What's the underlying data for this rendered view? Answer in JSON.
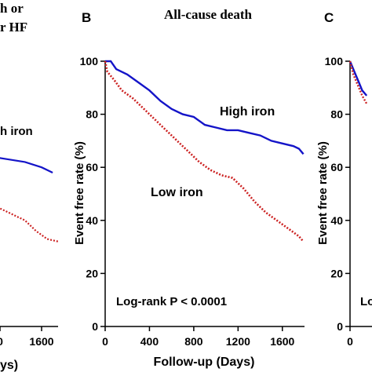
{
  "chart_data": [
    {
      "panel": "left (partial)",
      "type": "line",
      "title_fragments": [
        "h or",
        "r HF"
      ],
      "series_label": "h iron",
      "x_ticks": [
        "0",
        "1600"
      ],
      "xlabel_fragment": "ys)",
      "series": [
        {
          "name": "High iron",
          "color": "#1414c8",
          "points": [
            [
              1150,
              64
            ],
            [
              1300,
              63
            ],
            [
              1450,
              62
            ],
            [
              1600,
              60
            ],
            [
              1700,
              58
            ]
          ]
        },
        {
          "name": "Low iron",
          "color": "#cc2222",
          "points": [
            [
              1150,
              46
            ],
            [
              1300,
              43
            ],
            [
              1450,
              40
            ],
            [
              1550,
              36
            ],
            [
              1650,
              33
            ],
            [
              1750,
              32
            ]
          ]
        }
      ]
    },
    {
      "panel": "B",
      "type": "line",
      "panel_label": "B",
      "title": "All-cause death",
      "xlabel": "Follow-up (Days)",
      "ylabel": "Event free rate (%)",
      "xlim": [
        0,
        1800
      ],
      "ylim": [
        0,
        100
      ],
      "x_ticks": [
        0,
        400,
        800,
        1200,
        1600
      ],
      "y_ticks": [
        0,
        20,
        40,
        60,
        80,
        100
      ],
      "annotation": "Log-rank P < 0.0001",
      "series": [
        {
          "name": "High iron",
          "color": "#1414c8",
          "style": "solid",
          "points": [
            [
              0,
              100
            ],
            [
              50,
              100
            ],
            [
              100,
              97
            ],
            [
              200,
              95
            ],
            [
              300,
              92
            ],
            [
              400,
              89
            ],
            [
              500,
              85
            ],
            [
              600,
              82
            ],
            [
              700,
              80
            ],
            [
              800,
              79
            ],
            [
              900,
              76
            ],
            [
              1000,
              75
            ],
            [
              1100,
              74
            ],
            [
              1200,
              74
            ],
            [
              1300,
              73
            ],
            [
              1400,
              72
            ],
            [
              1500,
              70
            ],
            [
              1600,
              69
            ],
            [
              1700,
              68
            ],
            [
              1750,
              67
            ],
            [
              1790,
              65
            ]
          ]
        },
        {
          "name": "Low iron",
          "color": "#cc2222",
          "style": "dotted",
          "points": [
            [
              0,
              100
            ],
            [
              20,
              96
            ],
            [
              80,
              93
            ],
            [
              150,
              89
            ],
            [
              250,
              86
            ],
            [
              350,
              82
            ],
            [
              450,
              78
            ],
            [
              550,
              74
            ],
            [
              650,
              70
            ],
            [
              750,
              66
            ],
            [
              850,
              62
            ],
            [
              950,
              59
            ],
            [
              1050,
              57
            ],
            [
              1150,
              56
            ],
            [
              1250,
              52
            ],
            [
              1350,
              47
            ],
            [
              1450,
              43
            ],
            [
              1550,
              40
            ],
            [
              1650,
              37
            ],
            [
              1750,
              34
            ],
            [
              1790,
              32
            ]
          ]
        }
      ]
    },
    {
      "panel": "C (partial)",
      "type": "line",
      "panel_label": "C",
      "y_ticks": [
        0,
        20,
        40,
        60,
        80,
        100
      ],
      "annotation_fragment": "Lo",
      "series": [
        {
          "name": "High iron",
          "color": "#1414c8",
          "points": [
            [
              0,
              100
            ],
            [
              40,
              96
            ],
            [
              80,
              92
            ],
            [
              110,
              89
            ],
            [
              150,
              87
            ]
          ]
        },
        {
          "name": "Low iron",
          "color": "#cc2222",
          "points": [
            [
              0,
              100
            ],
            [
              30,
              95
            ],
            [
              70,
              91
            ],
            [
              110,
              87
            ],
            [
              150,
              84
            ]
          ]
        }
      ]
    }
  ]
}
